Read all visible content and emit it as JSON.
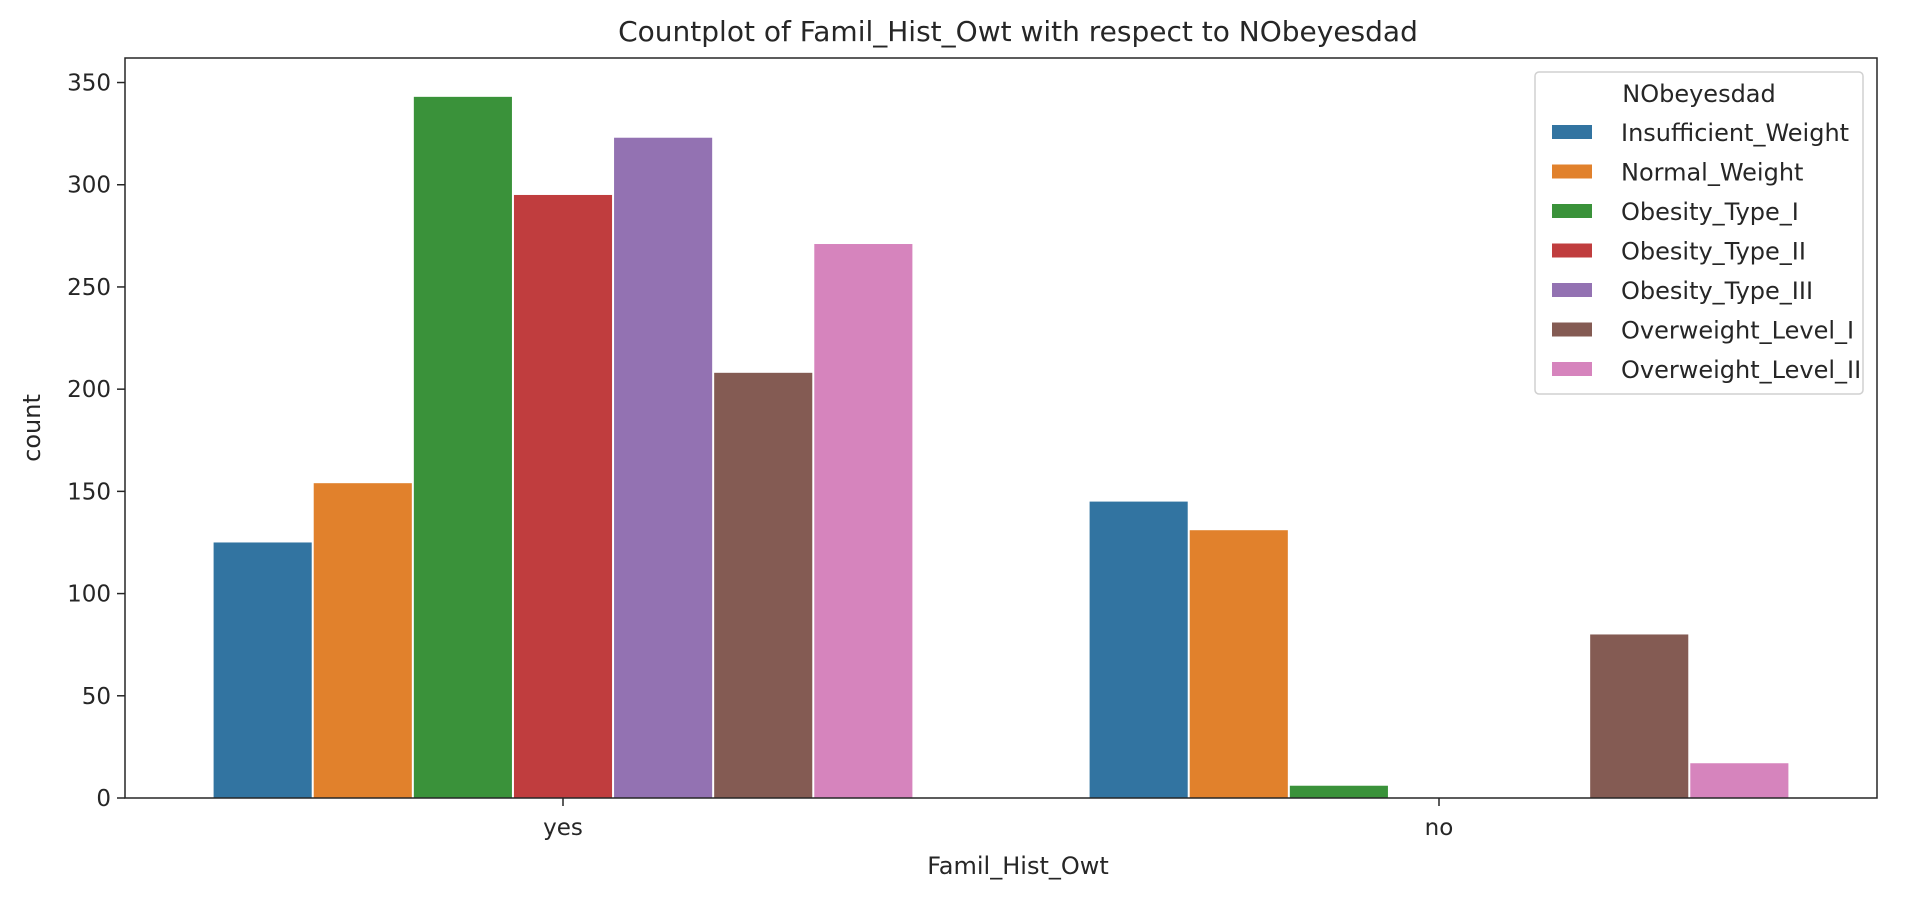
{
  "chart_data": {
    "type": "bar",
    "title": "Countplot of Famil_Hist_Owt with respect to NObeyesdad",
    "xlabel": "Famil_Hist_Owt",
    "ylabel": "count",
    "categories": [
      "yes",
      "no"
    ],
    "ylim": [
      0,
      362
    ],
    "yticks": [
      0,
      50,
      100,
      150,
      200,
      250,
      300,
      350
    ],
    "grid": false,
    "legend": {
      "title": "NObeyesdad",
      "placement": "top-right"
    },
    "series": [
      {
        "name": "Insufficient_Weight",
        "color": "#3274a1",
        "values": [
          125,
          145
        ]
      },
      {
        "name": "Normal_Weight",
        "color": "#e1812c",
        "values": [
          154,
          131
        ]
      },
      {
        "name": "Obesity_Type_I",
        "color": "#3a923a",
        "values": [
          343,
          6
        ]
      },
      {
        "name": "Obesity_Type_II",
        "color": "#c03d3e",
        "values": [
          295,
          0
        ]
      },
      {
        "name": "Obesity_Type_III",
        "color": "#9372b2",
        "values": [
          323,
          0
        ]
      },
      {
        "name": "Overweight_Level_I",
        "color": "#845b53",
        "values": [
          208,
          80
        ]
      },
      {
        "name": "Overweight_Level_II",
        "color": "#d684bd",
        "values": [
          271,
          17
        ]
      }
    ]
  }
}
